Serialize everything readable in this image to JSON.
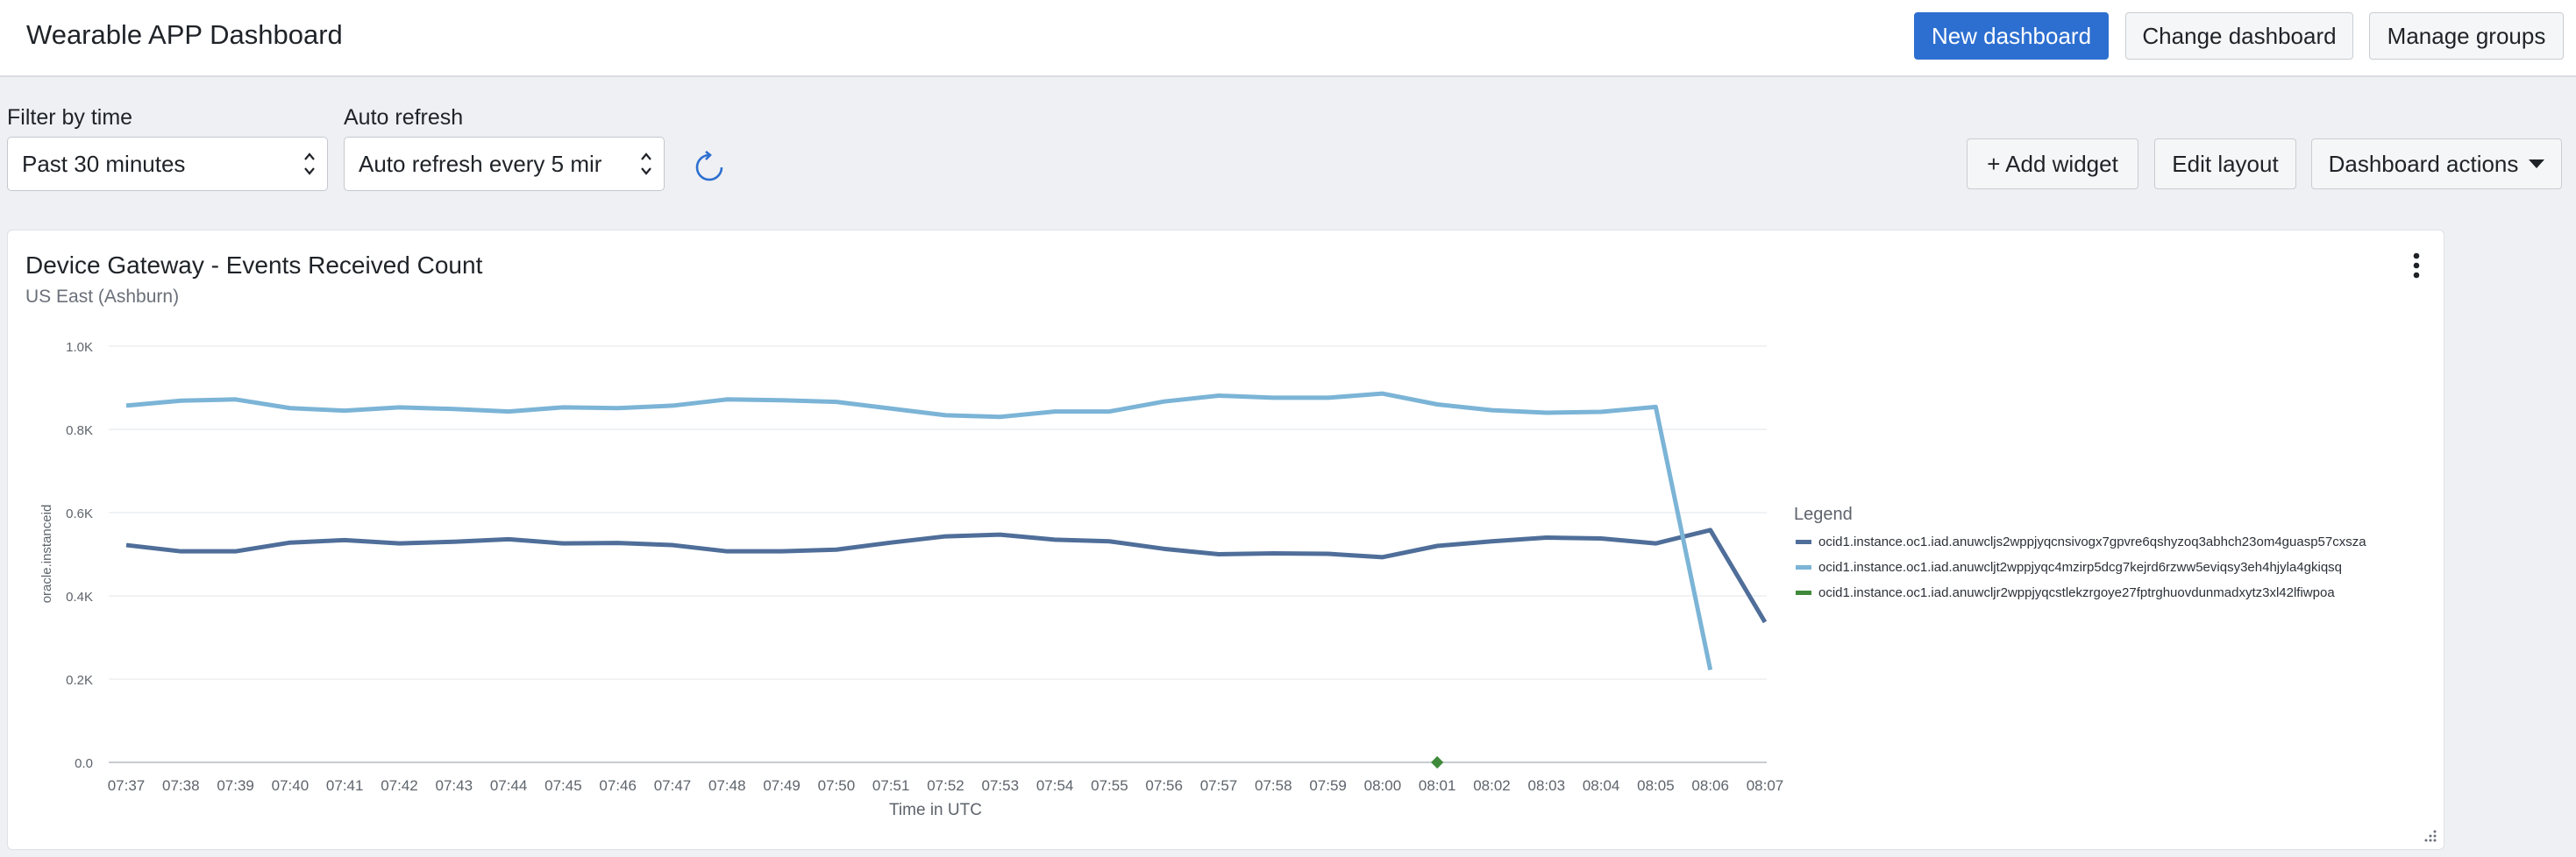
{
  "app": {
    "title": "Wearable APP Dashboard",
    "new_dashboard": "New dashboard",
    "change_dashboard": "Change dashboard",
    "manage_groups": "Manage groups"
  },
  "filters": {
    "time_label": "Filter by time",
    "time_value": "Past 30 minutes",
    "refresh_label": "Auto refresh",
    "refresh_value": "Auto refresh every 5 mir"
  },
  "toolbar": {
    "add_widget": "+ Add widget",
    "edit_layout": "Edit layout",
    "dashboard_actions": "Dashboard actions"
  },
  "widget": {
    "title": "Device Gateway - Events Received Count",
    "subtitle": "US East (Ashburn)"
  },
  "colors": {
    "primary_button": "#2d6fd0",
    "series_dark": "#4f6e99",
    "series_light": "#7bb4d6",
    "series_green": "#3f8a3a"
  },
  "icons": [
    "chevron-updown-icon",
    "refresh-icon",
    "kebab-icon",
    "resize-icon",
    "caret-down-icon"
  ],
  "chart_data": {
    "type": "line",
    "xlabel": "Time in UTC",
    "ylabel": "oracle.instanceid",
    "ylim": [
      0,
      1000
    ],
    "y_ticks": [
      "0.0",
      "0.2K",
      "0.4K",
      "0.6K",
      "0.8K",
      "1.0K"
    ],
    "x": [
      "07:37",
      "07:38",
      "07:39",
      "07:40",
      "07:41",
      "07:42",
      "07:43",
      "07:44",
      "07:45",
      "07:46",
      "07:47",
      "07:48",
      "07:49",
      "07:50",
      "07:51",
      "07:52",
      "07:53",
      "07:54",
      "07:55",
      "07:56",
      "07:57",
      "07:58",
      "07:59",
      "08:00",
      "08:01",
      "08:02",
      "08:03",
      "08:04",
      "08:05",
      "08:06",
      "08:07"
    ],
    "legend_title": "Legend",
    "legend_placement": "right",
    "grid": true,
    "series": [
      {
        "name": "ocid1.instance.oc1.iad.anuwcljs2wppjyqcnsivogx7gpvre6qshyzoq3abhch23om4guasp57cxsza",
        "color": "#4f6e99",
        "values": [
          522,
          507,
          507,
          528,
          534,
          526,
          530,
          536,
          526,
          527,
          522,
          507,
          507,
          511,
          528,
          543,
          547,
          535,
          531,
          513,
          500,
          502,
          501,
          493,
          520,
          531,
          540,
          538,
          526,
          558,
          337
        ]
      },
      {
        "name": "ocid1.instance.oc1.iad.anuwcljt2wppjyqc4mzirp5dcg7kejrd6rzww5eviqsy3eh4hjyla4gkiqsq",
        "color": "#7bb4d6",
        "values": [
          857,
          869,
          872,
          851,
          845,
          853,
          849,
          843,
          853,
          851,
          857,
          872,
          870,
          866,
          850,
          834,
          830,
          843,
          843,
          867,
          881,
          876,
          876,
          886,
          860,
          846,
          840,
          842,
          854,
          222,
          null
        ]
      },
      {
        "name": "ocid1.instance.oc1.iad.anuwcljr2wppjyqcstlekzrgoye27fptrghuovdunmadxytz3xl42lfiwpoa",
        "color": "#3f8a3a",
        "values": [
          null,
          null,
          null,
          null,
          null,
          null,
          null,
          null,
          null,
          null,
          null,
          null,
          null,
          null,
          null,
          null,
          null,
          null,
          null,
          null,
          null,
          null,
          null,
          null,
          0,
          null,
          null,
          null,
          null,
          null,
          null
        ]
      }
    ]
  }
}
